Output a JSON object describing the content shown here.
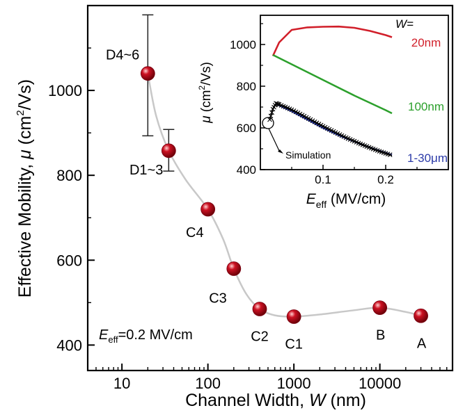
{
  "chart_data": [
    {
      "type": "scatter",
      "x_scale": "log",
      "xlabel": "Channel Width, W (nm)",
      "xlabel_parts": {
        "text": "Channel Width, ",
        "var": "W",
        "unit": " (nm)"
      },
      "ylabel": "Effective Mobility, μ (cm2/Vs)",
      "ylabel_parts": {
        "text": "Effective Mobility, ",
        "var": "μ",
        "unit_pre": " (cm",
        "sup": "2",
        "unit_post": "/Vs)"
      },
      "xlim": [
        4,
        70000
      ],
      "ylim": [
        340,
        1200
      ],
      "x_ticks": [
        10,
        100,
        1000,
        10000
      ],
      "x_tick_labels": [
        "10",
        "100",
        "1000",
        "10000"
      ],
      "y_ticks": [
        400,
        600,
        800,
        1000
      ],
      "y_tick_labels": [
        "400",
        "600",
        "800",
        "1000"
      ],
      "marker_color": "#cc1122",
      "trend_color": "#c8c8c8",
      "points": [
        {
          "x": 20,
          "y": 1040,
          "label": "D4~6",
          "err_low": 893,
          "err_high": 1178
        },
        {
          "x": 35,
          "y": 858,
          "label": "D1~3",
          "err_low": 810,
          "err_high": 908
        },
        {
          "x": 100,
          "y": 720,
          "label": "C4"
        },
        {
          "x": 200,
          "y": 580,
          "label": "C3"
        },
        {
          "x": 400,
          "y": 485,
          "label": "C2"
        },
        {
          "x": 1000,
          "y": 467,
          "label": "C1"
        },
        {
          "x": 10000,
          "y": 488,
          "label": "B"
        },
        {
          "x": 30000,
          "y": 469,
          "label": "A"
        }
      ],
      "trend": [
        [
          20,
          1040
        ],
        [
          25,
          940
        ],
        [
          35,
          858
        ],
        [
          55,
          790
        ],
        [
          100,
          720
        ],
        [
          150,
          650
        ],
        [
          200,
          580
        ],
        [
          280,
          520
        ],
        [
          400,
          485
        ],
        [
          600,
          470
        ],
        [
          1000,
          467
        ],
        [
          2000,
          472
        ],
        [
          5000,
          482
        ],
        [
          10000,
          488
        ],
        [
          20000,
          478
        ],
        [
          30000,
          469
        ]
      ],
      "annotation": {
        "var": "E",
        "sub": "eff",
        "text": "=0.2 MV/cm"
      }
    },
    {
      "type": "line",
      "xlabel": "Eeff (MV/cm)",
      "xlabel_parts": {
        "var": "E",
        "sub": "eff",
        "unit": " (MV/cm)"
      },
      "ylabel": "μ (cm2/Vs)",
      "ylabel_parts": {
        "var": "μ",
        "unit_pre": " (cm",
        "sup": "2",
        "unit_post": "/Vs)"
      },
      "xlim": [
        0,
        0.3
      ],
      "ylim": [
        400,
        1140
      ],
      "x_ticks": [
        0.1,
        0.2
      ],
      "x_tick_labels": [
        "0.1",
        "0.2"
      ],
      "y_ticks": [
        400,
        600,
        800,
        1000
      ],
      "y_tick_labels": [
        "400",
        "600",
        "800",
        "1000"
      ],
      "legend_title": "W=",
      "series": [
        {
          "name": "20nm",
          "color": "#d11f2a",
          "x": [
            0.02,
            0.03,
            0.05,
            0.075,
            0.1,
            0.125,
            0.15,
            0.175,
            0.2,
            0.21
          ],
          "y": [
            945,
            1010,
            1070,
            1082,
            1085,
            1086,
            1080,
            1065,
            1045,
            1035
          ]
        },
        {
          "name": "100nm",
          "color": "#2ca02c",
          "x": [
            0.02,
            0.05,
            0.1,
            0.15,
            0.2,
            0.21
          ],
          "y": [
            950,
            905,
            830,
            755,
            685,
            670
          ]
        },
        {
          "name": "1-30μm",
          "color": "#2b3aa8",
          "x": [
            0.025,
            0.05,
            0.075,
            0.1,
            0.125,
            0.15,
            0.175,
            0.2,
            0.21
          ],
          "y": [
            715,
            680,
            640,
            600,
            565,
            535,
            505,
            480,
            470
          ]
        }
      ],
      "simulation": {
        "label": "Simulation",
        "x": [
          0.015,
          0.02,
          0.025,
          0.03,
          0.04,
          0.05,
          0.06,
          0.07,
          0.08,
          0.09,
          0.1,
          0.11,
          0.12,
          0.13,
          0.14,
          0.15,
          0.16,
          0.17,
          0.18,
          0.19,
          0.2,
          0.21
        ],
        "y": [
          640,
          690,
          718,
          712,
          700,
          687,
          672,
          656,
          640,
          624,
          608,
          593,
          578,
          563,
          549,
          536,
          523,
          511,
          499,
          488,
          478,
          468
        ]
      }
    }
  ]
}
